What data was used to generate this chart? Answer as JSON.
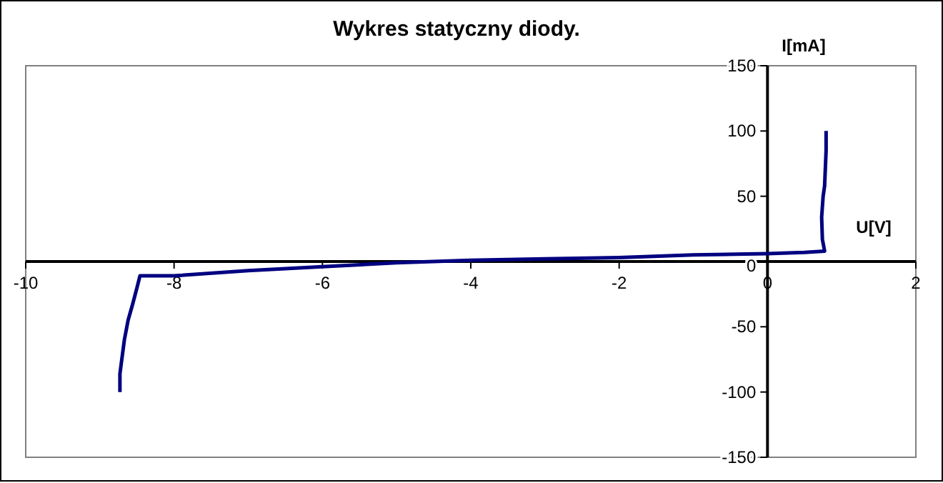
{
  "chart_data": {
    "type": "line",
    "title": "Wykres statyczny diody.",
    "xlabel": "U[V]",
    "ylabel": "I[mA]",
    "series": [
      {
        "color": "#000080",
        "x": [
          -8.73,
          -8.73,
          -8.67,
          -8.62,
          -8.56,
          -8.5,
          -8.46,
          -8,
          -7,
          -6,
          -5,
          -4,
          -3,
          -2,
          -1,
          0,
          0.5,
          0.77,
          0.74,
          0.73,
          0.75,
          0.77,
          0.79,
          0.79
        ],
        "values": [
          -100,
          -86,
          -60,
          -45,
          -33,
          -20,
          -11,
          -11,
          -7,
          -4,
          -1,
          1,
          2,
          3,
          5,
          6,
          7,
          8,
          17,
          34,
          50,
          58,
          85,
          100
        ]
      }
    ],
    "xlim": [
      -10,
      2
    ],
    "ylim": [
      -150,
      150
    ],
    "xticks": [
      -10,
      -8,
      -6,
      -4,
      -2,
      0,
      2
    ],
    "yticks": [
      -150,
      -100,
      -50,
      0,
      50,
      100,
      150
    ],
    "grid": false,
    "marker": "none",
    "line_style": "solid"
  }
}
